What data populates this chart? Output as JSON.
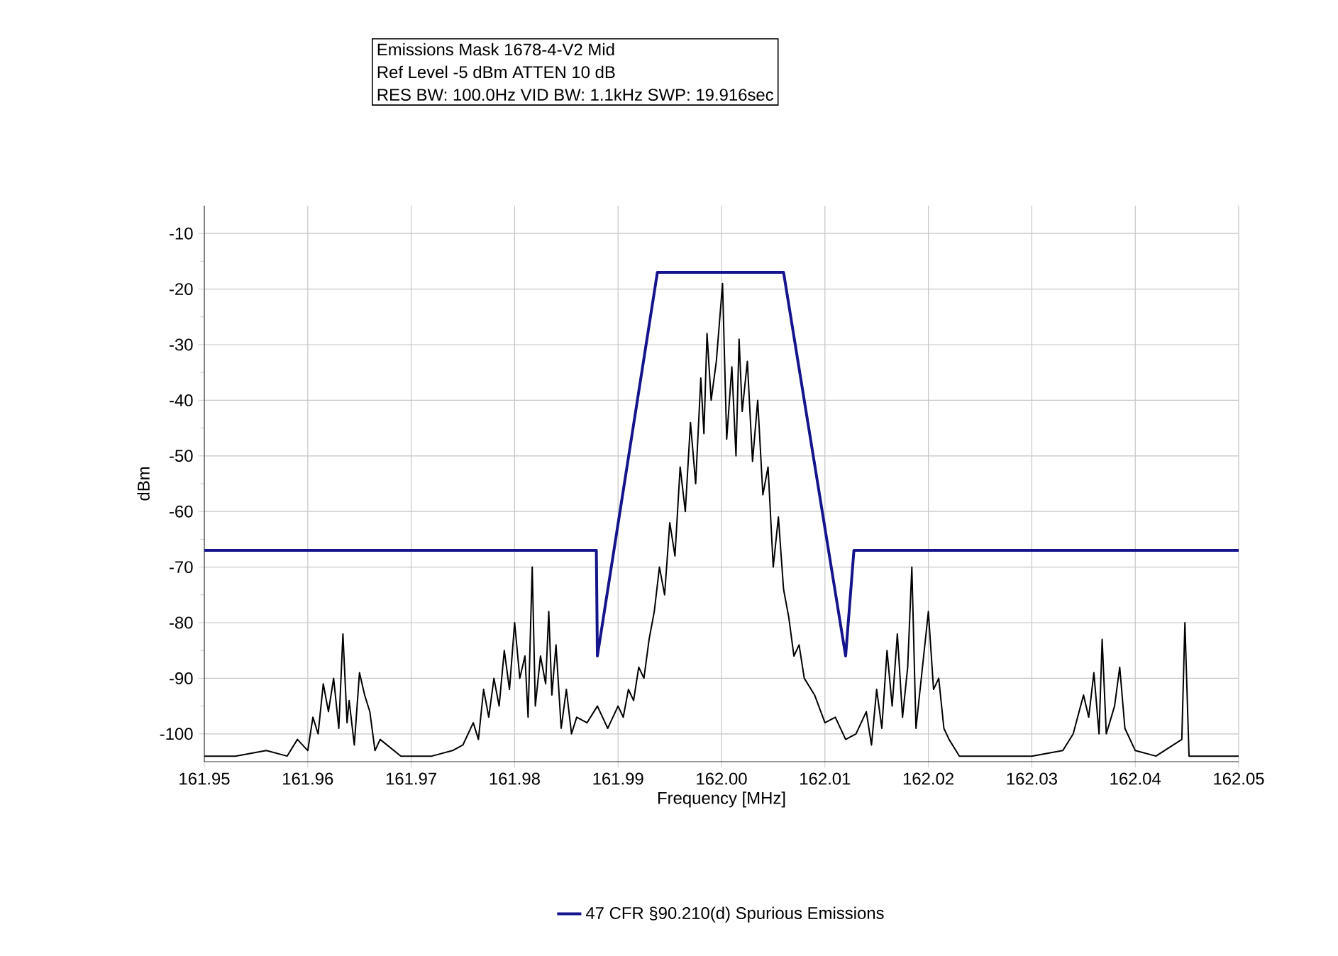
{
  "chart_data": {
    "type": "line",
    "title": "Emissions Mask 1678-4-V2 Mid",
    "subtitle": "Ref Level -5 dBm    ATTEN 10 dB",
    "annotations": [
      "RES BW: 100.0Hz  VID BW: 1.1kHz  SWP: 19.916sec"
    ],
    "xlabel": "Frequency [MHz]",
    "ylabel": "dBm",
    "xlim": [
      161.95,
      162.05
    ],
    "ylim": [
      -105,
      -5
    ],
    "xticks": [
      161.95,
      161.96,
      161.97,
      161.98,
      161.99,
      {
        "value": 162.0,
        "label": "162.00"
      },
      162.01,
      162.02,
      162.03,
      162.04,
      162.05
    ],
    "yticks": [
      -100,
      -90,
      -80,
      -70,
      -60,
      -50,
      -40,
      -30,
      -20,
      -10
    ],
    "grid": true,
    "legend": "bottom",
    "series": [
      {
        "color": "#000000",
        "x": [
          161.95,
          161.953,
          161.956,
          161.958,
          161.959,
          161.96,
          161.9605,
          161.961,
          161.9615,
          161.962,
          161.9625,
          161.963,
          161.9634,
          161.9638,
          161.964,
          161.9645,
          161.965,
          161.9655,
          161.966,
          161.9665,
          161.967,
          161.969,
          161.972,
          161.974,
          161.975,
          161.976,
          161.9765,
          161.977,
          161.9775,
          161.978,
          161.9785,
          161.979,
          161.9795,
          161.98,
          161.9805,
          161.981,
          161.9813,
          161.9817,
          161.982,
          161.9825,
          161.983,
          161.9833,
          161.9836,
          161.984,
          161.9845,
          161.985,
          161.9855,
          161.986,
          161.987,
          161.988,
          161.989,
          161.99,
          161.9905,
          161.991,
          161.9915,
          161.992,
          161.9925,
          161.993,
          161.9935,
          161.994,
          161.9945,
          161.995,
          161.9955,
          161.996,
          161.9965,
          161.997,
          161.9975,
          161.998,
          161.9983,
          161.9986,
          161.999,
          161.9995,
          162.0001,
          162.0005,
          162.001,
          162.0014,
          162.0017,
          162.002,
          162.0025,
          162.003,
          162.0035,
          162.004,
          162.0045,
          162.005,
          162.0055,
          162.006,
          162.0065,
          162.007,
          162.0075,
          162.008,
          162.009,
          162.01,
          162.011,
          162.012,
          162.013,
          162.014,
          162.0145,
          162.015,
          162.0155,
          162.016,
          162.0165,
          162.017,
          162.0175,
          162.018,
          162.0184,
          162.0188,
          162.02,
          162.0205,
          162.021,
          162.0215,
          162.022,
          162.023,
          162.026,
          162.03,
          162.033,
          162.034,
          162.035,
          162.0355,
          162.036,
          162.0365,
          162.0368,
          162.0372,
          162.038,
          162.0385,
          162.039,
          162.04,
          162.042,
          162.0445,
          162.0448,
          162.0452,
          162.047,
          162.05
        ],
        "values": [
          -104,
          -104,
          -103,
          -104,
          -101,
          -103,
          -97,
          -100,
          -91,
          -96,
          -90,
          -99,
          -82,
          -98,
          -94,
          -102,
          -89,
          -93,
          -96,
          -103,
          -101,
          -104,
          -104,
          -103,
          -102,
          -98,
          -101,
          -92,
          -97,
          -90,
          -95,
          -85,
          -92,
          -80,
          -90,
          -86,
          -97,
          -70,
          -95,
          -86,
          -91,
          -78,
          -93,
          -84,
          -99,
          -92,
          -100,
          -97,
          -98,
          -95,
          -99,
          -95,
          -97,
          -92,
          -94,
          -88,
          -90,
          -83,
          -78,
          -70,
          -75,
          -62,
          -68,
          -52,
          -60,
          -44,
          -55,
          -36,
          -46,
          -28,
          -40,
          -33,
          -19,
          -47,
          -34,
          -50,
          -29,
          -42,
          -33,
          -51,
          -40,
          -57,
          -52,
          -70,
          -61,
          -74,
          -79,
          -86,
          -84,
          -90,
          -93,
          -98,
          -97,
          -101,
          -100,
          -96,
          -102,
          -92,
          -99,
          -85,
          -95,
          -82,
          -97,
          -88,
          -70,
          -99,
          -78,
          -92,
          -90,
          -99,
          -101,
          -104,
          -104,
          -104,
          -103,
          -100,
          -93,
          -97,
          -89,
          -100,
          -83,
          -100,
          -95,
          -88,
          -99,
          -103,
          -104,
          -101,
          -80,
          -104,
          -104,
          -104
        ]
      },
      {
        "name": "47 CFR §90.210(d) Spurious Emissions",
        "color": "#14148c",
        "x": [
          161.95,
          161.9879,
          161.988,
          161.9938,
          162.006,
          162.012,
          162.0128,
          162.05
        ],
        "values": [
          -67,
          -67,
          -86,
          -17,
          -17,
          -86,
          -67,
          -67
        ]
      }
    ]
  }
}
